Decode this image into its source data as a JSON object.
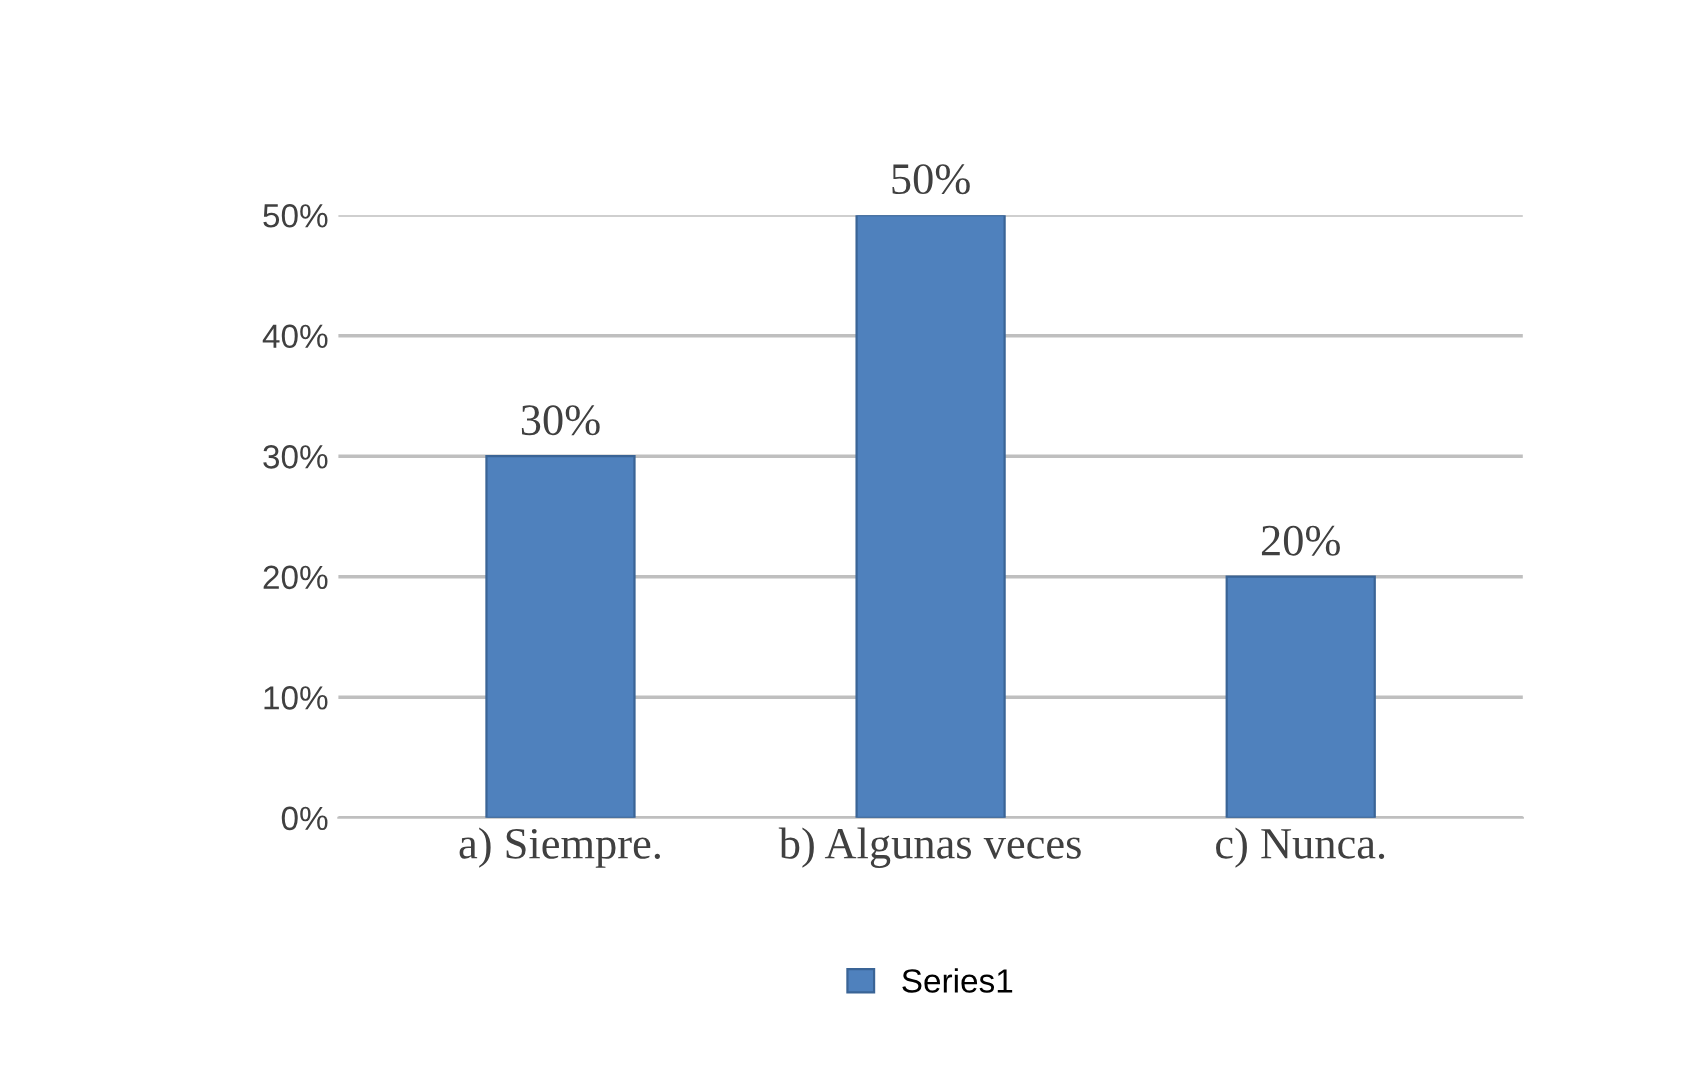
{
  "chart_data": {
    "type": "bar",
    "categories": [
      "a) Siempre.",
      "b) Algunas veces",
      "c) Nunca."
    ],
    "series": [
      {
        "name": "Series1",
        "color": "#4f81bd",
        "values": [
          30,
          50,
          20
        ],
        "value_labels": [
          "30%",
          "50%",
          "20%"
        ]
      }
    ],
    "ylim": [
      0,
      50
    ],
    "yticks": [
      {
        "value": 0,
        "label": "0%"
      },
      {
        "value": 10,
        "label": "10%"
      },
      {
        "value": 20,
        "label": "20%"
      },
      {
        "value": 30,
        "label": "30%"
      },
      {
        "value": 40,
        "label": "40%"
      },
      {
        "value": 50,
        "label": "50%"
      }
    ],
    "grid": "y",
    "legend": "bottom"
  }
}
